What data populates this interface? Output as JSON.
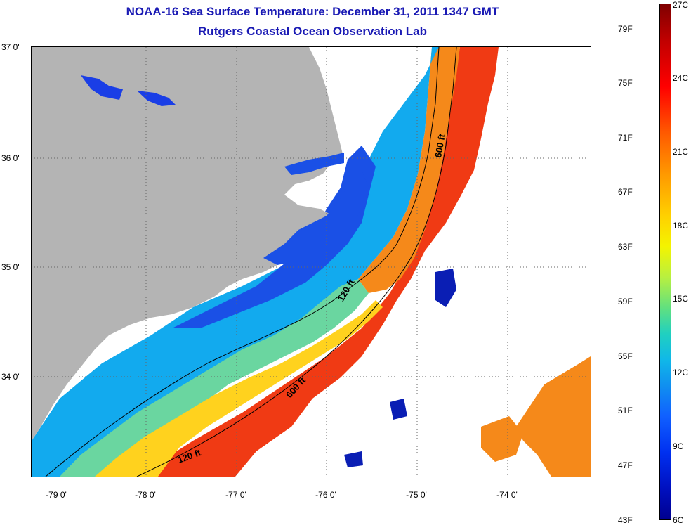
{
  "header": {
    "title": "NOAA-16 Sea Surface Temperature:  December 31, 2011 1347 GMT",
    "subtitle": "Rutgers Coastal Ocean Observation Lab"
  },
  "map": {
    "lat_labels": [
      "37 0'",
      "36 0'",
      "35 0'",
      "34 0'"
    ],
    "lon_labels": [
      "-79 0'",
      "-78 0'",
      "-77 0'",
      "-76 0'",
      "-75 0'",
      "-74 0'"
    ],
    "contour_labels": [
      "600 ft",
      "120 ft",
      "600 ft",
      "120 ft"
    ],
    "colors": {
      "land": "#b4b4b4",
      "no_data": "#ffffff",
      "coastal_cold": "#1a50e6",
      "shelf_cool": "#12aaee",
      "mid_shelf": "#6ad6a0",
      "warm_front": "#ffd21e",
      "gulf_stream": "#f03a14"
    }
  },
  "colorbar": {
    "fahrenheit": [
      "79F",
      "75F",
      "71F",
      "67F",
      "63F",
      "59F",
      "55F",
      "51F",
      "47F",
      "43F"
    ],
    "celsius": [
      "27C",
      "24C",
      "21C",
      "18C",
      "15C",
      "12C",
      "9C",
      "6C"
    ]
  }
}
